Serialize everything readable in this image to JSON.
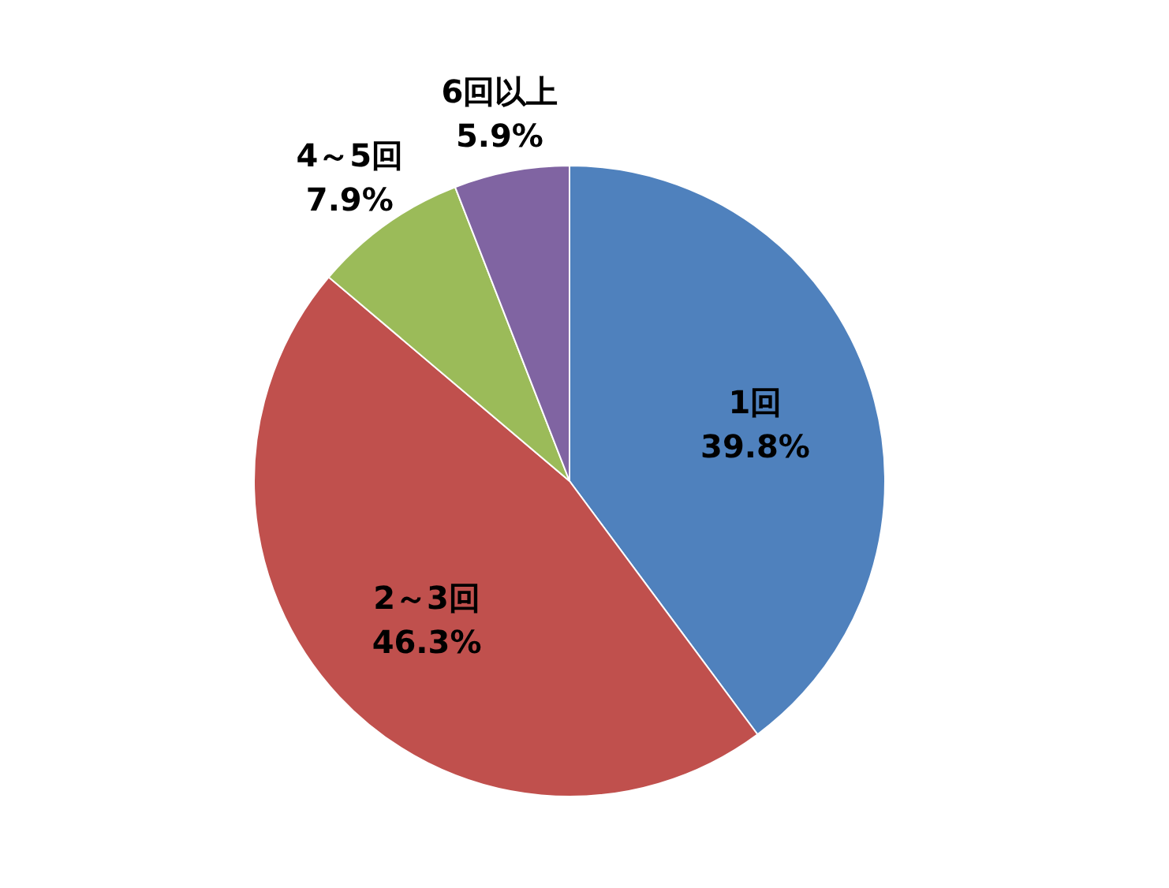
{
  "chart_data": {
    "type": "pie",
    "categories": [
      "1回",
      "2～3回",
      "4～5回",
      "6回以上"
    ],
    "values": [
      39.8,
      46.3,
      7.9,
      5.9
    ],
    "colors": [
      "#4f81bd",
      "#c0504d",
      "#9bbb59",
      "#8064a2"
    ],
    "value_labels": [
      "39.8%",
      "46.3%",
      "7.9%",
      "5.9%"
    ]
  }
}
